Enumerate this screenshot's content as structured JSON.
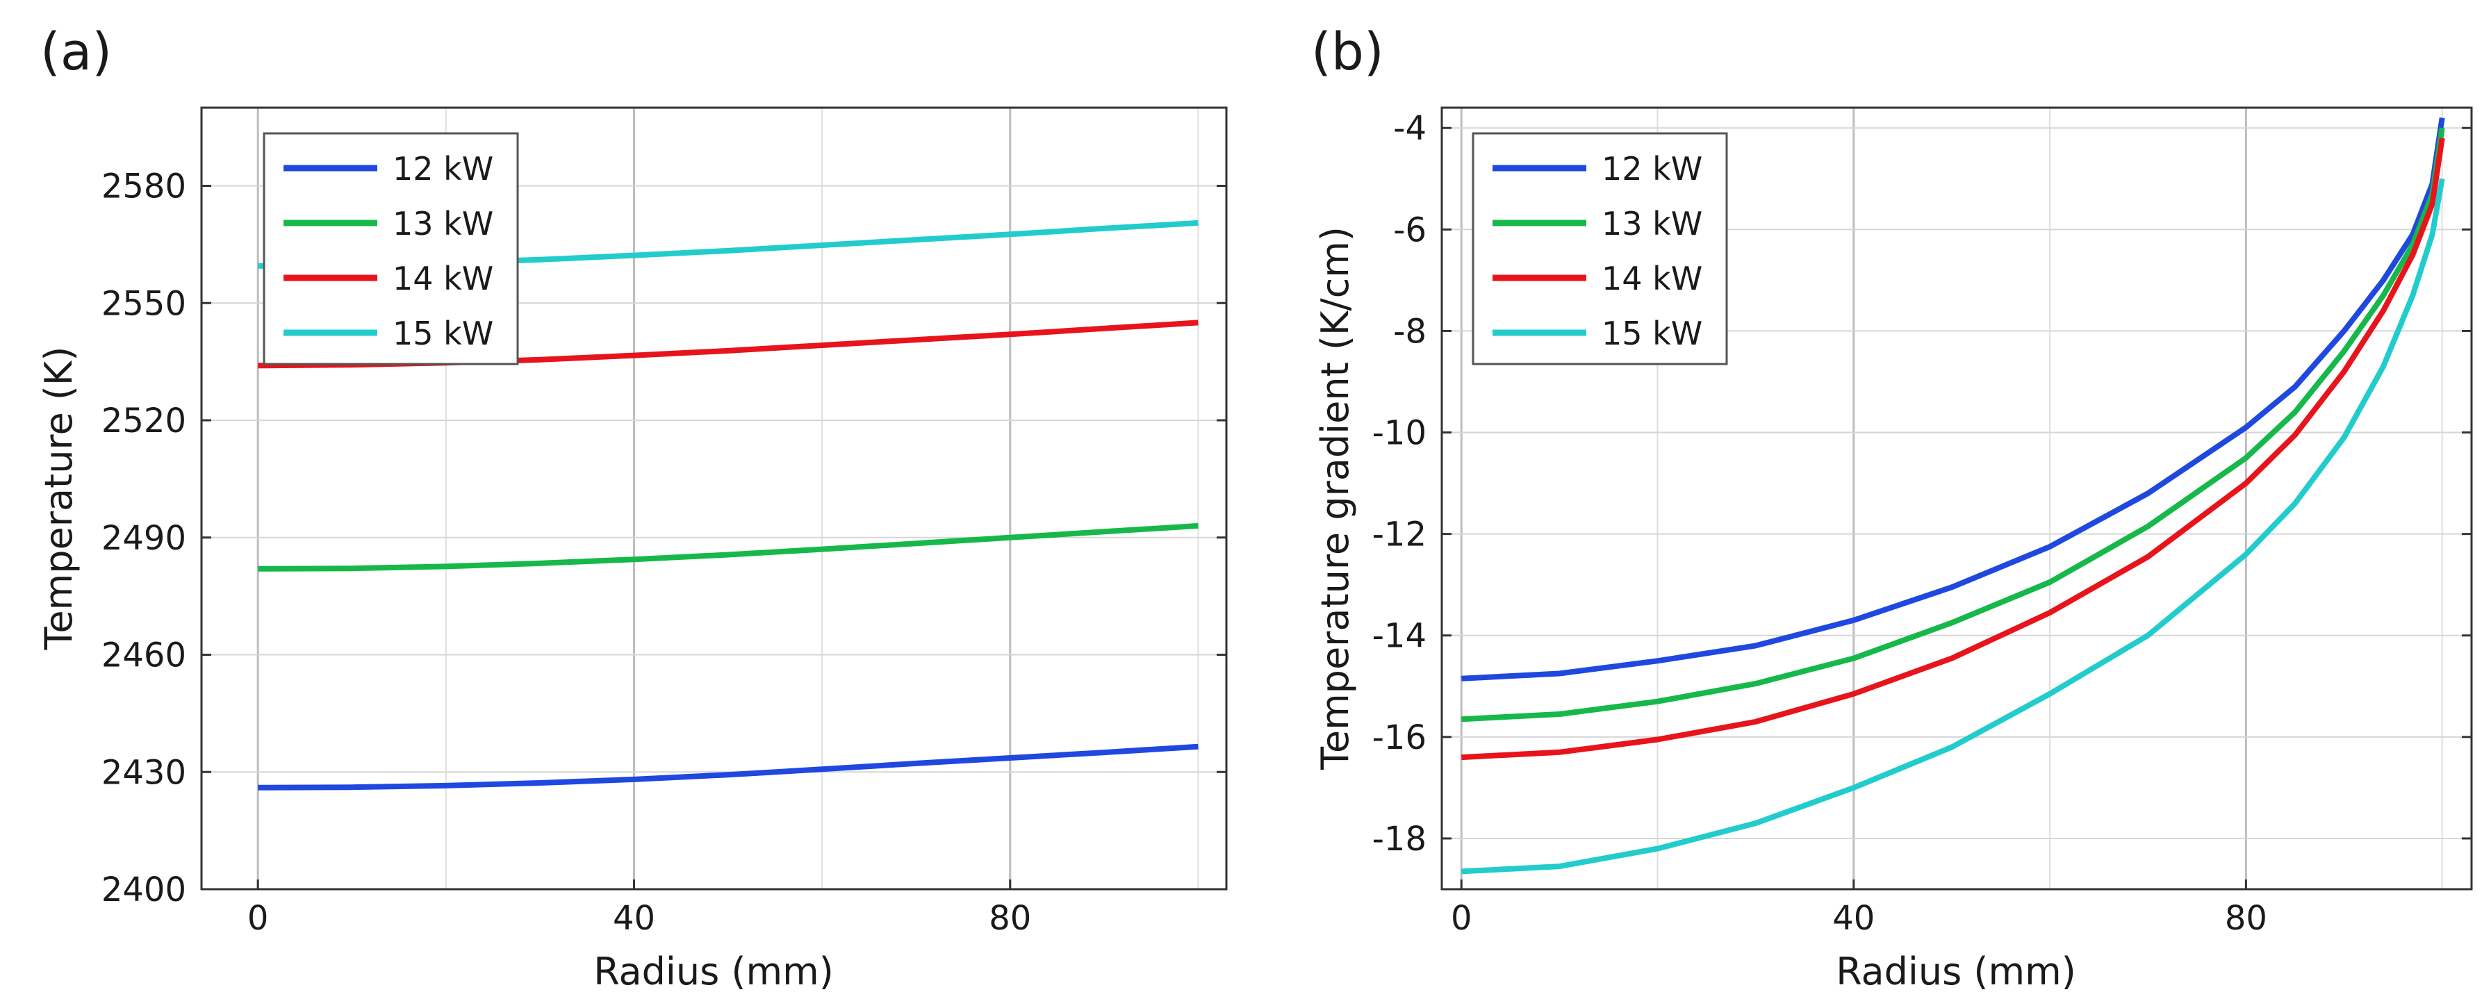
{
  "chart_data": [
    {
      "panel_label": "(a)",
      "type": "line",
      "xlabel": "Radius (mm)",
      "ylabel": "Temperature (K)",
      "xlim": [
        -6,
        103
      ],
      "ylim": [
        2400,
        2600
      ],
      "xticks": [
        0,
        40,
        80
      ],
      "yticks": [
        2400,
        2430,
        2460,
        2490,
        2520,
        2550,
        2580
      ],
      "grid": true,
      "legend_position": "top-left",
      "series": [
        {
          "name": "12 kW",
          "color": "#1f48e0",
          "x": [
            0,
            10,
            20,
            30,
            40,
            50,
            60,
            70,
            80,
            90,
            100
          ],
          "y": [
            2426,
            2426.1,
            2426.5,
            2427.2,
            2428.1,
            2429.3,
            2430.7,
            2432.2,
            2433.6,
            2435,
            2436.5
          ]
        },
        {
          "name": "13 kW",
          "color": "#16b84a",
          "x": [
            0,
            10,
            20,
            30,
            40,
            50,
            60,
            70,
            80,
            90,
            100
          ],
          "y": [
            2482,
            2482.1,
            2482.6,
            2483.4,
            2484.4,
            2485.6,
            2487,
            2488.5,
            2490,
            2491.5,
            2493
          ]
        },
        {
          "name": "14 kW",
          "color": "#e8141c",
          "x": [
            0,
            10,
            20,
            30,
            40,
            50,
            60,
            70,
            80,
            90,
            100
          ],
          "y": [
            2534,
            2534.2,
            2534.7,
            2535.5,
            2536.6,
            2537.8,
            2539.2,
            2540.6,
            2542,
            2543.5,
            2545
          ]
        },
        {
          "name": "15 kW",
          "color": "#22cccc",
          "x": [
            0,
            10,
            20,
            30,
            40,
            50,
            60,
            70,
            80,
            90,
            100
          ],
          "y": [
            2559.5,
            2559.7,
            2560.3,
            2561.1,
            2562.2,
            2563.4,
            2564.8,
            2566.2,
            2567.6,
            2569.1,
            2570.5
          ]
        }
      ]
    },
    {
      "panel_label": "(b)",
      "type": "line",
      "xlabel": "Radius (mm)",
      "ylabel": "Temperature gradient (K/cm)",
      "xlim": [
        -2,
        103
      ],
      "ylim": [
        -19,
        -3.6
      ],
      "xticks": [
        0,
        40,
        80
      ],
      "yticks": [
        -18,
        -16,
        -14,
        -12,
        -10,
        -8,
        -6,
        -4
      ],
      "grid": true,
      "legend_position": "top-left",
      "series": [
        {
          "name": "12 kW",
          "color": "#1f48e0",
          "x": [
            0,
            10,
            20,
            30,
            40,
            50,
            60,
            70,
            80,
            85,
            90,
            94,
            97,
            99,
            100
          ],
          "y": [
            -14.85,
            -14.75,
            -14.5,
            -14.2,
            -13.7,
            -13.05,
            -12.25,
            -11.2,
            -9.9,
            -9.1,
            -8.0,
            -7.0,
            -6.1,
            -5.1,
            -3.8
          ]
        },
        {
          "name": "13 kW",
          "color": "#16b84a",
          "x": [
            0,
            10,
            20,
            30,
            40,
            50,
            60,
            70,
            80,
            85,
            90,
            94,
            97,
            99,
            100
          ],
          "y": [
            -15.65,
            -15.55,
            -15.3,
            -14.95,
            -14.45,
            -13.75,
            -12.95,
            -11.85,
            -10.5,
            -9.6,
            -8.4,
            -7.3,
            -6.3,
            -5.3,
            -4.0
          ]
        },
        {
          "name": "14 kW",
          "color": "#e8141c",
          "x": [
            0,
            10,
            20,
            30,
            40,
            50,
            60,
            70,
            80,
            85,
            90,
            94,
            97,
            99,
            100
          ],
          "y": [
            -16.4,
            -16.3,
            -16.05,
            -15.7,
            -15.15,
            -14.45,
            -13.55,
            -12.45,
            -11.0,
            -10.05,
            -8.8,
            -7.6,
            -6.5,
            -5.5,
            -4.2
          ]
        },
        {
          "name": "15 kW",
          "color": "#22cccc",
          "x": [
            0,
            10,
            20,
            30,
            40,
            50,
            60,
            70,
            80,
            85,
            90,
            94,
            97,
            99,
            100
          ],
          "y": [
            -18.65,
            -18.55,
            -18.2,
            -17.7,
            -17.0,
            -16.2,
            -15.15,
            -14.0,
            -12.4,
            -11.4,
            -10.1,
            -8.7,
            -7.3,
            -6.1,
            -5.0
          ]
        }
      ]
    }
  ]
}
